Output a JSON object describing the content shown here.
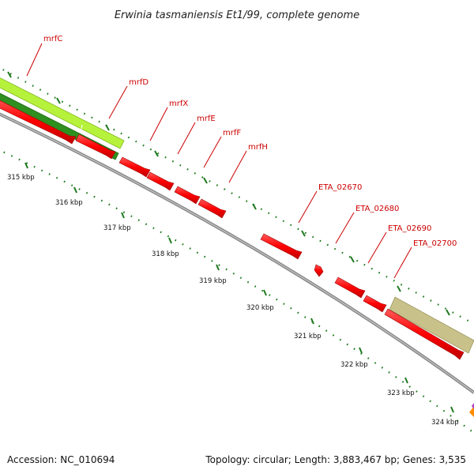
{
  "title": "Erwinia tasmaniensis Et1/99, complete genome",
  "footer": {
    "accession": "Accession: NC_010694",
    "summary": "Topology: circular; Length: 3,883,467 bp; Genes: 3,535"
  },
  "gene_labels": [
    "mrfC",
    "mrfD",
    "mrfX",
    "mrfE",
    "mrfF",
    "mrfH",
    "ETA_02670",
    "ETA_02680",
    "ETA_02690",
    "ETA_02700"
  ],
  "kbp_labels": [
    "315 kbp",
    "316 kbp",
    "317 kbp",
    "318 kbp",
    "319 kbp",
    "320 kbp",
    "321 kbp",
    "322 kbp",
    "323 kbp",
    "324 kbp"
  ],
  "colors": {
    "backbone": "#8c8c8c",
    "gene_red": "#ff0000",
    "gene_lime": "#b6f23c",
    "gene_green": "#2f8f1f",
    "gene_khaki": "#c8c28a",
    "tick_green": "#1e7a1e",
    "label_red": "#cc0000"
  }
}
